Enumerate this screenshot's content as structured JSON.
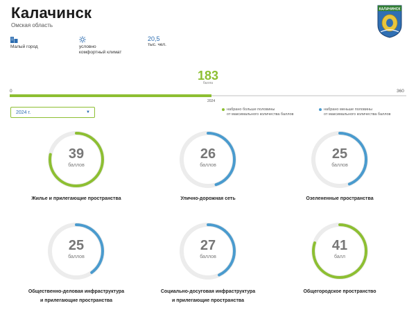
{
  "header": {
    "city": "Калачинск",
    "region": "Омская область",
    "emblem_text": "КАЛАЧИНСК"
  },
  "params": {
    "city_type": "Малый город",
    "climate_line1": "условно",
    "climate_line2": "комфортный климат",
    "population_value": "20,5",
    "population_unit": "тыс. чел."
  },
  "index": {
    "score": "183",
    "score_unit": "балла",
    "min": "0",
    "max": "360",
    "progress": 0.508,
    "year_marker": "2024"
  },
  "year_select": {
    "value": "2024 г."
  },
  "legend": {
    "more_half_line1": "набрано больше половины",
    "more_half_line2": "от максимального количества баллов",
    "less_half_line1": "набрано меньше половины",
    "less_half_line2": "от максимального количества баллов"
  },
  "colors": {
    "good": "#8dbf32",
    "bad": "#4a9bce",
    "track": "#ececec"
  },
  "categories": [
    {
      "value": "39",
      "unit": "баллов",
      "fraction": 0.78,
      "status": "good",
      "label1": "Жилье и прилегающие пространства",
      "label2": ""
    },
    {
      "value": "26",
      "unit": "баллов",
      "fraction": 0.45,
      "status": "bad",
      "label1": "Улично-дорожная сеть",
      "label2": ""
    },
    {
      "value": "25",
      "unit": "баллов",
      "fraction": 0.44,
      "status": "bad",
      "label1": "Озелененные пространства",
      "label2": ""
    },
    {
      "value": "25",
      "unit": "баллов",
      "fraction": 0.4,
      "status": "bad",
      "label1": "Общественно-деловая инфраструктура",
      "label2": "и прилегающие пространства"
    },
    {
      "value": "27",
      "unit": "баллов",
      "fraction": 0.43,
      "status": "bad",
      "label1": "Социально-досуговая инфраструктура",
      "label2": "и прилегающие пространства"
    },
    {
      "value": "41",
      "unit": "балл",
      "fraction": 0.8,
      "status": "good",
      "label1": "Общегородское пространство",
      "label2": ""
    }
  ]
}
